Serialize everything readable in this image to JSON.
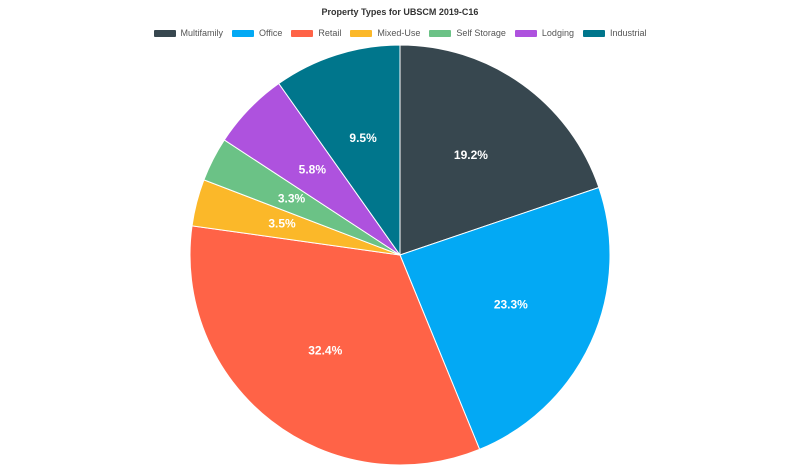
{
  "chart_data": {
    "type": "pie",
    "title": "Property Types for UBSCM 2019-C16",
    "legend_position": "top",
    "slices": [
      {
        "name": "Multifamily",
        "value": 19.2,
        "label": "19.2%",
        "color": "#37474f"
      },
      {
        "name": "Office",
        "value": 23.3,
        "label": "23.3%",
        "color": "#03a9f4"
      },
      {
        "name": "Retail",
        "value": 32.4,
        "label": "32.4%",
        "color": "#ff6347"
      },
      {
        "name": "Mixed-Use",
        "value": 3.5,
        "label": "3.5%",
        "color": "#fbb829"
      },
      {
        "name": "Self Storage",
        "value": 3.3,
        "label": "3.3%",
        "color": "#6bc286"
      },
      {
        "name": "Lodging",
        "value": 5.8,
        "label": "5.8%",
        "color": "#ae52de"
      },
      {
        "name": "Industrial",
        "value": 9.5,
        "label": "9.5%",
        "color": "#00768c"
      }
    ]
  }
}
